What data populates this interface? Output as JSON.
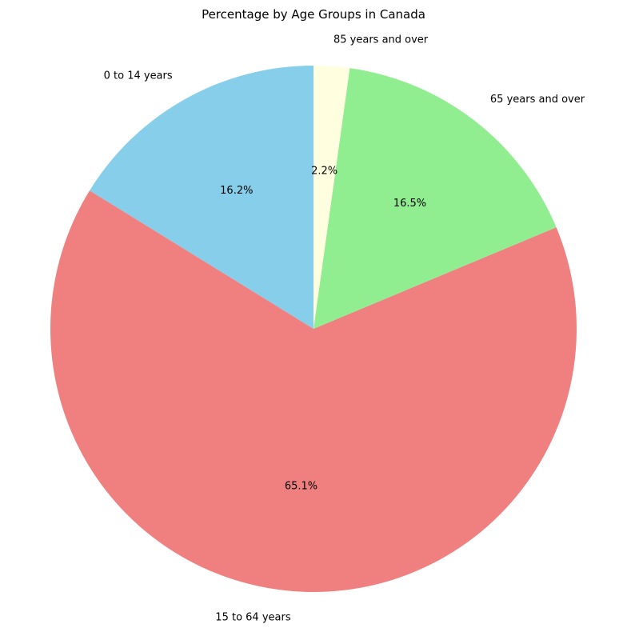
{
  "chart_data": {
    "type": "pie",
    "title": "Percentage by Age Groups in Canada",
    "slices": [
      {
        "label": "0 to 14 years",
        "value": 16.2,
        "pct_label": "16.2%",
        "color": "#87ceeb"
      },
      {
        "label": "15 to 64 years",
        "value": 65.1,
        "pct_label": "65.1%",
        "color": "#f08080"
      },
      {
        "label": "65 years and over",
        "value": 16.5,
        "pct_label": "16.5%",
        "color": "#90ee90"
      },
      {
        "label": "85 years and over",
        "value": 2.2,
        "pct_label": "2.2%",
        "color": "#ffffe0"
      }
    ],
    "start_angle": 90,
    "direction": "counterclockwise",
    "legend": "none"
  }
}
